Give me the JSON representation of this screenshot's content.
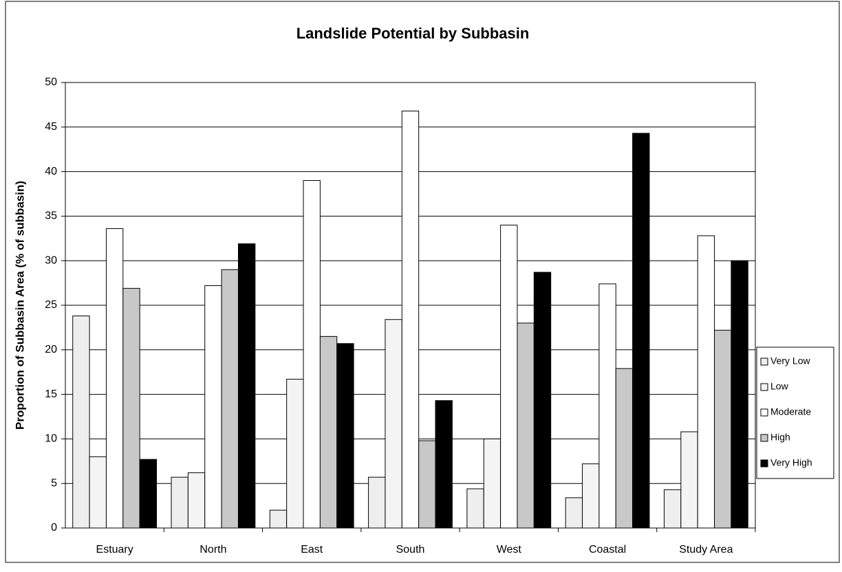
{
  "chart_data": {
    "type": "bar",
    "title": "Landslide Potential by Subbasin",
    "y_label": "Proportion of Subbasin Area (% of subbasin)",
    "categories": [
      "Estuary",
      "North",
      "East",
      "South",
      "West",
      "Coastal",
      "Study Area"
    ],
    "series": [
      {
        "name": "Very Low",
        "color": "#eeeeee",
        "values": [
          23.8,
          5.7,
          2.0,
          5.7,
          4.4,
          3.4,
          4.3
        ]
      },
      {
        "name": "Low",
        "color": "#f4f4f4",
        "values": [
          8.0,
          6.2,
          16.7,
          23.4,
          10.0,
          7.2,
          10.8
        ]
      },
      {
        "name": "Moderate",
        "color": "#ffffff",
        "values": [
          33.6,
          27.2,
          39.0,
          46.8,
          34.0,
          27.4,
          32.8
        ]
      },
      {
        "name": "High",
        "color": "#c8c8c8",
        "values": [
          26.9,
          29.0,
          21.5,
          9.8,
          23.0,
          17.9,
          22.2
        ]
      },
      {
        "name": "Very High",
        "color": "#000000",
        "values": [
          7.7,
          31.9,
          20.7,
          14.3,
          28.7,
          44.3,
          30.0
        ]
      }
    ],
    "ylim": [
      0,
      50
    ],
    "yticks": [
      0,
      5,
      10,
      15,
      20,
      25,
      30,
      35,
      40,
      45,
      50
    ],
    "grid": true,
    "legend": "right"
  }
}
